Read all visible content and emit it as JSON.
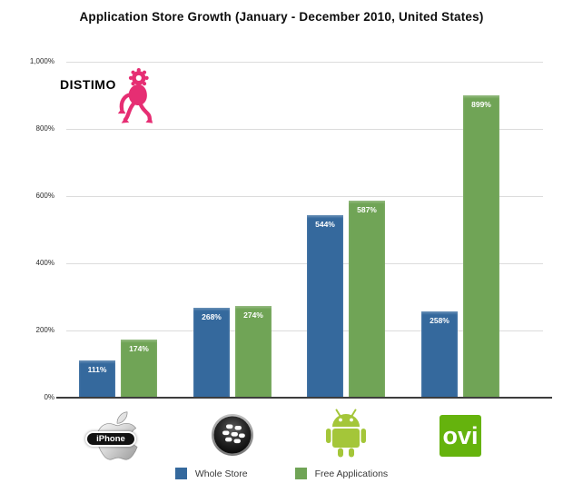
{
  "title": "Application Store Growth (January - December 2010, United States)",
  "logo": {
    "text": "DISTIMO",
    "color": "#E62E73"
  },
  "chart_data": {
    "type": "bar",
    "title": "Application Store Growth (January - December 2010, United States)",
    "categories": [
      "iPhone",
      "BlackBerry",
      "Android",
      "Ovi"
    ],
    "series": [
      {
        "name": "Whole Store",
        "color": "#35699D",
        "values": [
          111,
          268,
          544,
          258
        ],
        "labels": [
          "111%",
          "268%",
          "544%",
          "258%"
        ]
      },
      {
        "name": "Free Applications",
        "color": "#70A456",
        "values": [
          174,
          274,
          587,
          899
        ],
        "labels": [
          "174%",
          "274%",
          "587%",
          "899%"
        ]
      }
    ],
    "xlabel": "",
    "ylabel": "",
    "ylim": [
      0,
      1000
    ],
    "yticks": [
      {
        "value": 0,
        "label": "0%"
      },
      {
        "value": 200,
        "label": "200%"
      },
      {
        "value": 400,
        "label": "400%"
      },
      {
        "value": 600,
        "label": "600%"
      },
      {
        "value": 800,
        "label": "800%"
      },
      {
        "value": 1000,
        "label": "1,000%"
      }
    ],
    "grid": true,
    "legend_position": "bottom",
    "value_labels_inside_bars": true,
    "value_label_color": "#FFFFFF"
  },
  "legend": {
    "items": [
      {
        "label": "Whole Store",
        "color": "#35699D"
      },
      {
        "label": "Free Applications",
        "color": "#70A456"
      }
    ]
  },
  "icons": {
    "iphone_badge_text": "iPhone",
    "ovi_text": "ovi",
    "android_color": "#A4C639",
    "ovi_color": "#65B30D"
  }
}
